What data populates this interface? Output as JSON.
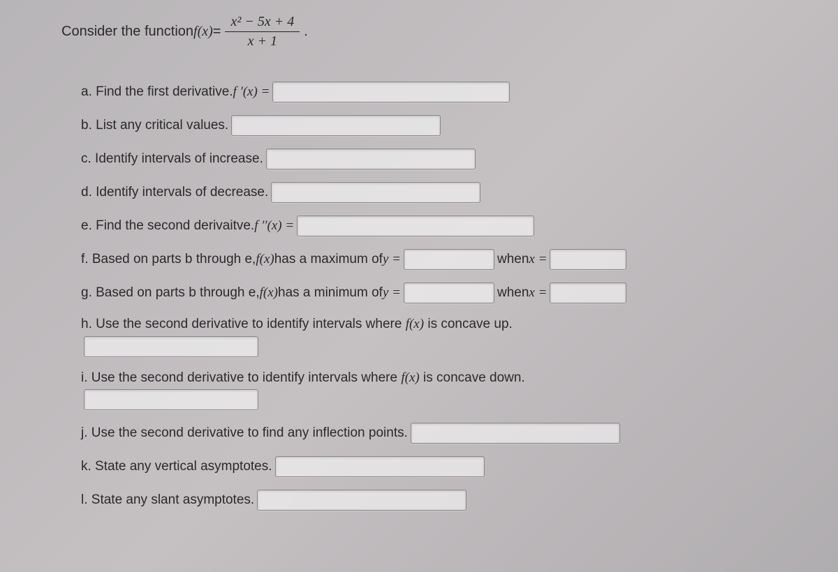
{
  "intro": {
    "prefix": "Consider the function ",
    "fn": "f(x)",
    "equals": " = ",
    "numerator": "x² − 5x + 4",
    "denominator": "x + 1",
    "period": "."
  },
  "parts": {
    "a": {
      "label": "a. Find the first derivative. ",
      "math": "f ′(x) = "
    },
    "b": {
      "label": "b. List any critical values."
    },
    "c": {
      "label": "c. Identify intervals of increase."
    },
    "d": {
      "label": "d. Identify intervals of decrease."
    },
    "e": {
      "label": "e. Find the second derivaitve. ",
      "math": "f ′′(x) = "
    },
    "f": {
      "label_pre": "f. Based on parts b through e, ",
      "math_fx": "f(x)",
      "label_mid": " has a maximum of ",
      "math_y": "y = ",
      "when": " when ",
      "math_x": "x = "
    },
    "g": {
      "label_pre": "g. Based on parts b through e, ",
      "math_fx": "f(x)",
      "label_mid": " has a minimum of ",
      "math_y": "y = ",
      "when": " when ",
      "math_x": "x = "
    },
    "h": {
      "label": "h. Use the second derivative to identify intervals where ",
      "math_fx": "f(x)",
      "tail": " is concave up."
    },
    "i": {
      "label": "i. Use the second derivative to identify intervals where ",
      "math_fx": "f(x)",
      "tail": " is concave down."
    },
    "j": {
      "label": "j. Use the second derivative to find any inflection points."
    },
    "k": {
      "label": "k. State any vertical asymptotes."
    },
    "l": {
      "label": "l. State any slant asymptotes."
    }
  }
}
